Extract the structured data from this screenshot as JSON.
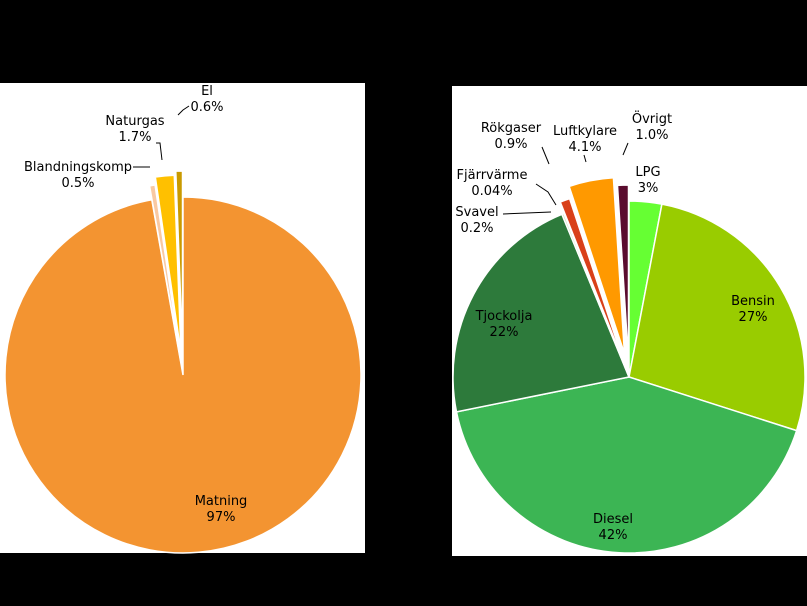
{
  "chart_data": [
    {
      "type": "pie",
      "slices": [
        {
          "name": "Matning",
          "value": 97,
          "value_label": "97%",
          "color": "#f39431"
        },
        {
          "name": "Blandningskomp",
          "value": 0.5,
          "value_label": "0.5%",
          "color": "#f9c9a2"
        },
        {
          "name": "Naturgas",
          "value": 1.7,
          "value_label": "1.7%",
          "color": "#ffc000"
        },
        {
          "name": "El",
          "value": 0.6,
          "value_label": "0.6%",
          "color": "#c99a00"
        }
      ]
    },
    {
      "type": "pie",
      "slices": [
        {
          "name": "LPG",
          "value": 3,
          "value_label": "3%",
          "color": "#66ff33"
        },
        {
          "name": "Bensin",
          "value": 27,
          "value_label": "27%",
          "color": "#99cc00"
        },
        {
          "name": "Diesel",
          "value": 42,
          "value_label": "42%",
          "color": "#3cb554"
        },
        {
          "name": "Tjockolja",
          "value": 22,
          "value_label": "22%",
          "color": "#2d7a3b"
        },
        {
          "name": "Svavel",
          "value": 0.2,
          "value_label": "0.2%",
          "color": "#c8e6b8"
        },
        {
          "name": "Fjärrvärme",
          "value": 0.04,
          "value_label": "0.04%",
          "color": "#a0a0a0"
        },
        {
          "name": "Rökgaser",
          "value": 0.9,
          "value_label": "0.9%",
          "color": "#d9401a"
        },
        {
          "name": "Luftkylare",
          "value": 4.1,
          "value_label": "4.1%",
          "color": "#ff9900"
        },
        {
          "name": "Övrigt",
          "value": 1.0,
          "value_label": "1.0%",
          "color": "#5a0c2e"
        }
      ]
    }
  ]
}
